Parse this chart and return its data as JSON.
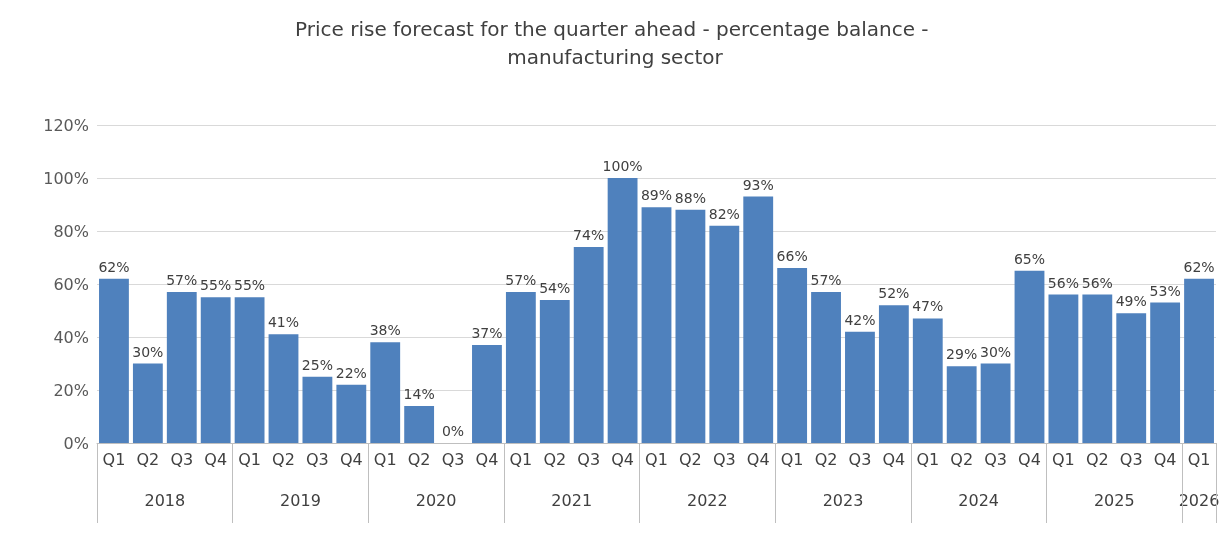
{
  "chart_data": {
    "type": "bar",
    "title": "Price rise forecast for the quarter ahead - percentage balance - manufacturing sector",
    "categories": [
      "Q1",
      "Q2",
      "Q3",
      "Q4",
      "Q1",
      "Q2",
      "Q3",
      "Q4",
      "Q1",
      "Q2",
      "Q3",
      "Q4",
      "Q1",
      "Q2",
      "Q3",
      "Q4",
      "Q1",
      "Q2",
      "Q3",
      "Q4",
      "Q1",
      "Q2",
      "Q3",
      "Q4",
      "Q1",
      "Q2",
      "Q3",
      "Q4",
      "Q1",
      "Q2",
      "Q3",
      "Q4",
      "Q1"
    ],
    "values": [
      62,
      30,
      57,
      55,
      55,
      41,
      25,
      22,
      38,
      14,
      0,
      37,
      57,
      54,
      74,
      100,
      89,
      88,
      82,
      93,
      66,
      57,
      42,
      52,
      47,
      29,
      30,
      65,
      56,
      56,
      49,
      53,
      62
    ],
    "value_labels": [
      "62%",
      "30%",
      "57%",
      "55%",
      "55%",
      "41%",
      "25%",
      "22%",
      "38%",
      "14%",
      "0%",
      "37%",
      "57%",
      "54%",
      "74%",
      "100%",
      "89%",
      "88%",
      "82%",
      "93%",
      "66%",
      "57%",
      "42%",
      "52%",
      "47%",
      "29%",
      "30%",
      "65%",
      "56%",
      "56%",
      "49%",
      "53%",
      "62%"
    ],
    "color": "#4f81bd",
    "ylim": [
      0,
      120
    ],
    "yticks": [
      {
        "value": 0,
        "label": "0%"
      },
      {
        "value": 20,
        "label": "20%"
      },
      {
        "value": 40,
        "label": "40%"
      },
      {
        "value": 60,
        "label": "60%"
      },
      {
        "value": 80,
        "label": "80%"
      },
      {
        "value": 100,
        "label": "100%"
      },
      {
        "value": 120,
        "label": "120%"
      }
    ],
    "grid": "y",
    "annotations": [
      "2018",
      "2019",
      "2020",
      "2021",
      "2022",
      "2023",
      "2024",
      "2025",
      "2026"
    ]
  }
}
